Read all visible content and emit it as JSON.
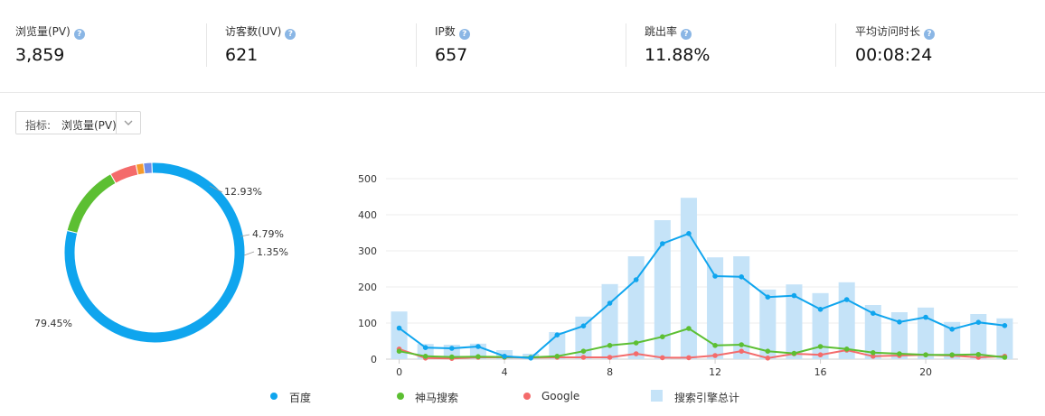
{
  "stats": [
    {
      "label": "浏览量(PV)",
      "value": "3,859"
    },
    {
      "label": "访客数(UV)",
      "value": "621"
    },
    {
      "label": "IP数",
      "value": "657"
    },
    {
      "label": "跳出率",
      "value": "11.88%"
    },
    {
      "label": "平均访问时长",
      "value": "00:08:24"
    }
  ],
  "help_glyph": "?",
  "metric_selector": {
    "label": "指标:",
    "value": "浏览量(PV)"
  },
  "colors": {
    "baidu": "#0fa5ee",
    "shenma": "#5cbf32",
    "google": "#f46b6b",
    "total": "#c5e3f8",
    "other1": "#f59a2c",
    "other2": "#6f8ee8"
  },
  "chart_data": [
    {
      "type": "pie",
      "donut": true,
      "slices": [
        {
          "name": "百度",
          "value": 79.45,
          "label": "79.45%"
        },
        {
          "name": "神马搜索",
          "value": 12.93,
          "label": "12.93%"
        },
        {
          "name": "Google",
          "value": 4.79,
          "label": "4.79%"
        },
        {
          "name": "",
          "value": 1.35,
          "label": "1.35%"
        },
        {
          "name": "",
          "value": 1.48,
          "label": ""
        }
      ]
    },
    {
      "type": "line",
      "x": [
        0,
        1,
        2,
        3,
        4,
        5,
        6,
        7,
        8,
        9,
        10,
        11,
        12,
        13,
        14,
        15,
        16,
        17,
        18,
        19,
        20,
        21,
        22,
        23
      ],
      "x_ticks": [
        0,
        4,
        8,
        12,
        16,
        20
      ],
      "ylim": [
        0,
        500
      ],
      "y_ticks": [
        0,
        100,
        200,
        300,
        400,
        500
      ],
      "grid": true,
      "legend": "bottom",
      "series": [
        {
          "name": "百度",
          "type": "line",
          "values": [
            86,
            32,
            30,
            35,
            8,
            3,
            67,
            92,
            155,
            220,
            320,
            348,
            230,
            228,
            172,
            176,
            138,
            165,
            127,
            103,
            116,
            83,
            102,
            93
          ]
        },
        {
          "name": "神马搜索",
          "type": "line",
          "values": [
            22,
            8,
            6,
            7,
            6,
            5,
            8,
            22,
            38,
            45,
            62,
            85,
            38,
            40,
            22,
            16,
            35,
            28,
            18,
            15,
            12,
            12,
            13,
            5
          ]
        },
        {
          "name": "Google",
          "type": "line",
          "values": [
            28,
            3,
            2,
            5,
            5,
            4,
            5,
            5,
            5,
            15,
            4,
            4,
            10,
            22,
            3,
            15,
            12,
            25,
            8,
            10,
            12,
            10,
            5,
            8
          ]
        },
        {
          "name": "搜索引擎总计",
          "type": "bar",
          "values": [
            132,
            42,
            40,
            43,
            25,
            15,
            75,
            118,
            208,
            285,
            385,
            447,
            282,
            285,
            193,
            207,
            183,
            213,
            150,
            130,
            143,
            103,
            125,
            113
          ]
        }
      ]
    }
  ]
}
